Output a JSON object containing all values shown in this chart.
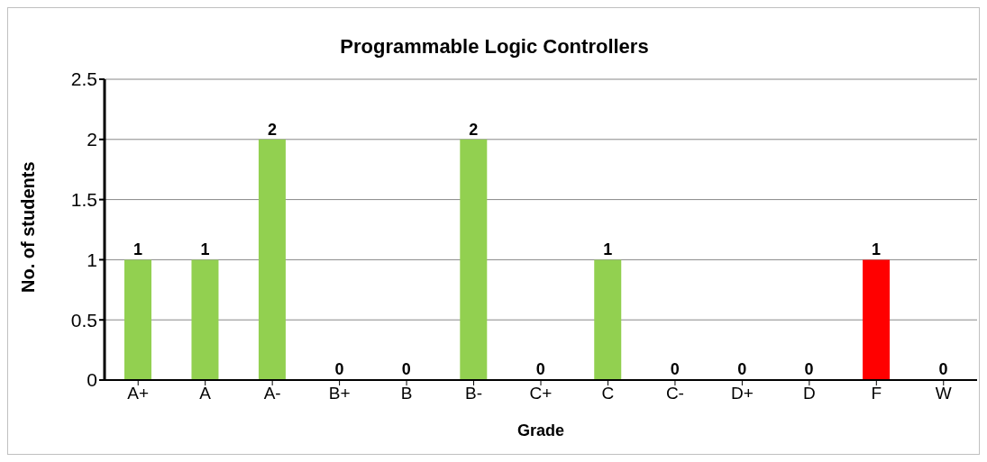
{
  "chart_data": {
    "type": "bar",
    "title": "Programmable Logic Controllers",
    "xlabel": "Grade",
    "ylabel": "No. of students",
    "categories": [
      "A+",
      "A",
      "A-",
      "B+",
      "B",
      "B-",
      "C+",
      "C",
      "C-",
      "D+",
      "D",
      "F",
      "W"
    ],
    "values": [
      1,
      1,
      2,
      0,
      0,
      2,
      0,
      1,
      0,
      0,
      0,
      1,
      0
    ],
    "colors": [
      "#92d050",
      "#92d050",
      "#92d050",
      "#92d050",
      "#92d050",
      "#92d050",
      "#92d050",
      "#92d050",
      "#92d050",
      "#92d050",
      "#92d050",
      "#ff0000",
      "#92d050"
    ],
    "ylim": [
      0,
      2.5
    ],
    "yticks": [
      0,
      0.5,
      1,
      1.5,
      2,
      2.5
    ],
    "grid": "y",
    "legend": false,
    "data_labels": true
  }
}
